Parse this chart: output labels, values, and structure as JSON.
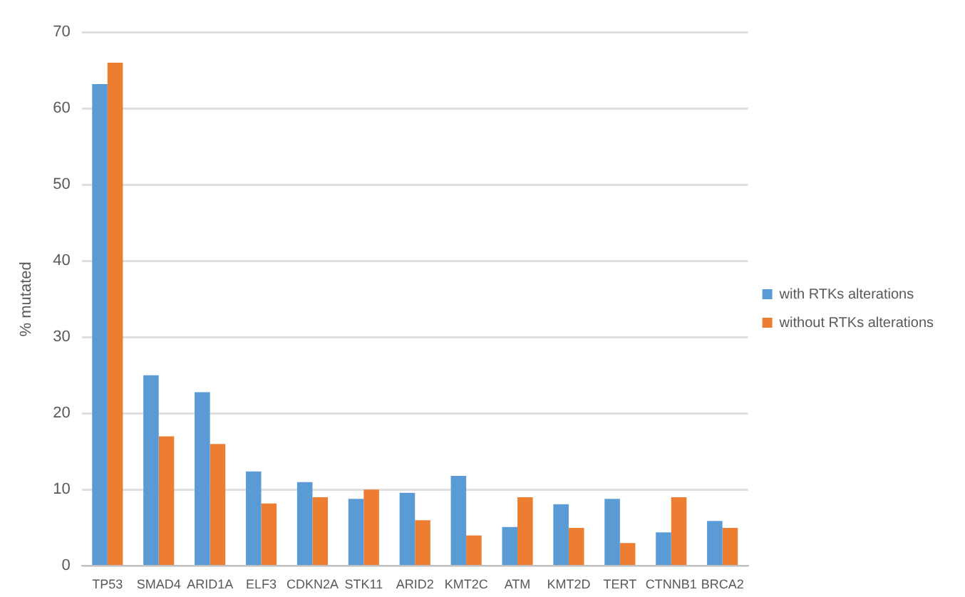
{
  "chart_data": {
    "type": "bar",
    "ylabel": "% mutated",
    "categories": [
      "TP53",
      "SMAD4",
      "ARID1A",
      "ELF3",
      "CDKN2A",
      "STK11",
      "ARID2",
      "KMT2C",
      "ATM",
      "KMT2D",
      "TERT",
      "CTNNB1",
      "BRCA2"
    ],
    "series": [
      {
        "name": "with RTKs alterations",
        "color": "#5b9bd5",
        "values": [
          63.2,
          25,
          22.8,
          12.4,
          11,
          8.8,
          9.6,
          11.8,
          5.1,
          8.1,
          8.8,
          4.4,
          5.9
        ]
      },
      {
        "name": "without RTKs alterations",
        "color": "#ed7d31",
        "values": [
          66,
          17,
          16,
          8.2,
          9,
          10,
          6,
          4,
          9,
          5,
          3,
          9,
          5
        ]
      }
    ],
    "ylim": [
      0,
      70
    ],
    "yticks": [
      0,
      10,
      20,
      30,
      40,
      50,
      60,
      70
    ],
    "grid": "y",
    "legend": "right"
  }
}
